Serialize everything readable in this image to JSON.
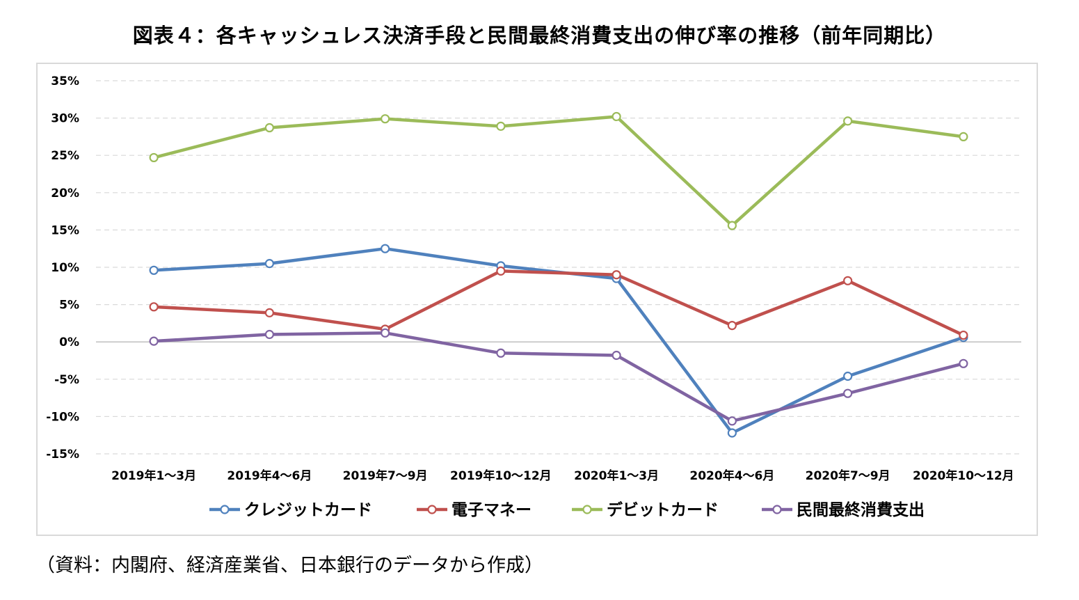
{
  "title": "図表４：各キャッシュレス決済手段と民間最終消費支出の伸び率の推移（前年同期比）",
  "source": "（資料：内閣府、経済産業省、日本銀行のデータから作成）",
  "chart_data": {
    "type": "line",
    "title": "図表４：各キャッシュレス決済手段と民間最終消費支出の伸び率の推移（前年同期比）",
    "xlabel": "",
    "ylabel": "",
    "categories": [
      "2019年1～3月",
      "2019年4～6月",
      "2019年7～9月",
      "2019年10～12月",
      "2020年1～3月",
      "2020年4～6月",
      "2020年7～9月",
      "2020年10～12月"
    ],
    "yticks": [
      "35%",
      "30%",
      "25%",
      "20%",
      "15%",
      "10%",
      "5%",
      "0%",
      "-5%",
      "-10%",
      "-15%"
    ],
    "ylim": [
      -15,
      35
    ],
    "grid": true,
    "legend": "bottom",
    "series": [
      {
        "name": "クレジットカード",
        "color": "#4f81bd",
        "values": [
          9.6,
          10.5,
          12.5,
          10.2,
          8.5,
          -12.2,
          -4.6,
          0.6
        ]
      },
      {
        "name": "電子マネー",
        "color": "#c0504d",
        "values": [
          4.7,
          3.9,
          1.7,
          9.5,
          9.0,
          2.2,
          8.2,
          0.9
        ]
      },
      {
        "name": "デビットカード",
        "color": "#9bbb59",
        "values": [
          24.7,
          28.7,
          29.9,
          28.9,
          30.2,
          15.6,
          29.6,
          27.5
        ]
      },
      {
        "name": "民間最終消費支出",
        "color": "#8064a2",
        "values": [
          0.1,
          1.0,
          1.2,
          -1.5,
          -1.8,
          -10.6,
          -6.9,
          -2.9
        ]
      }
    ]
  }
}
